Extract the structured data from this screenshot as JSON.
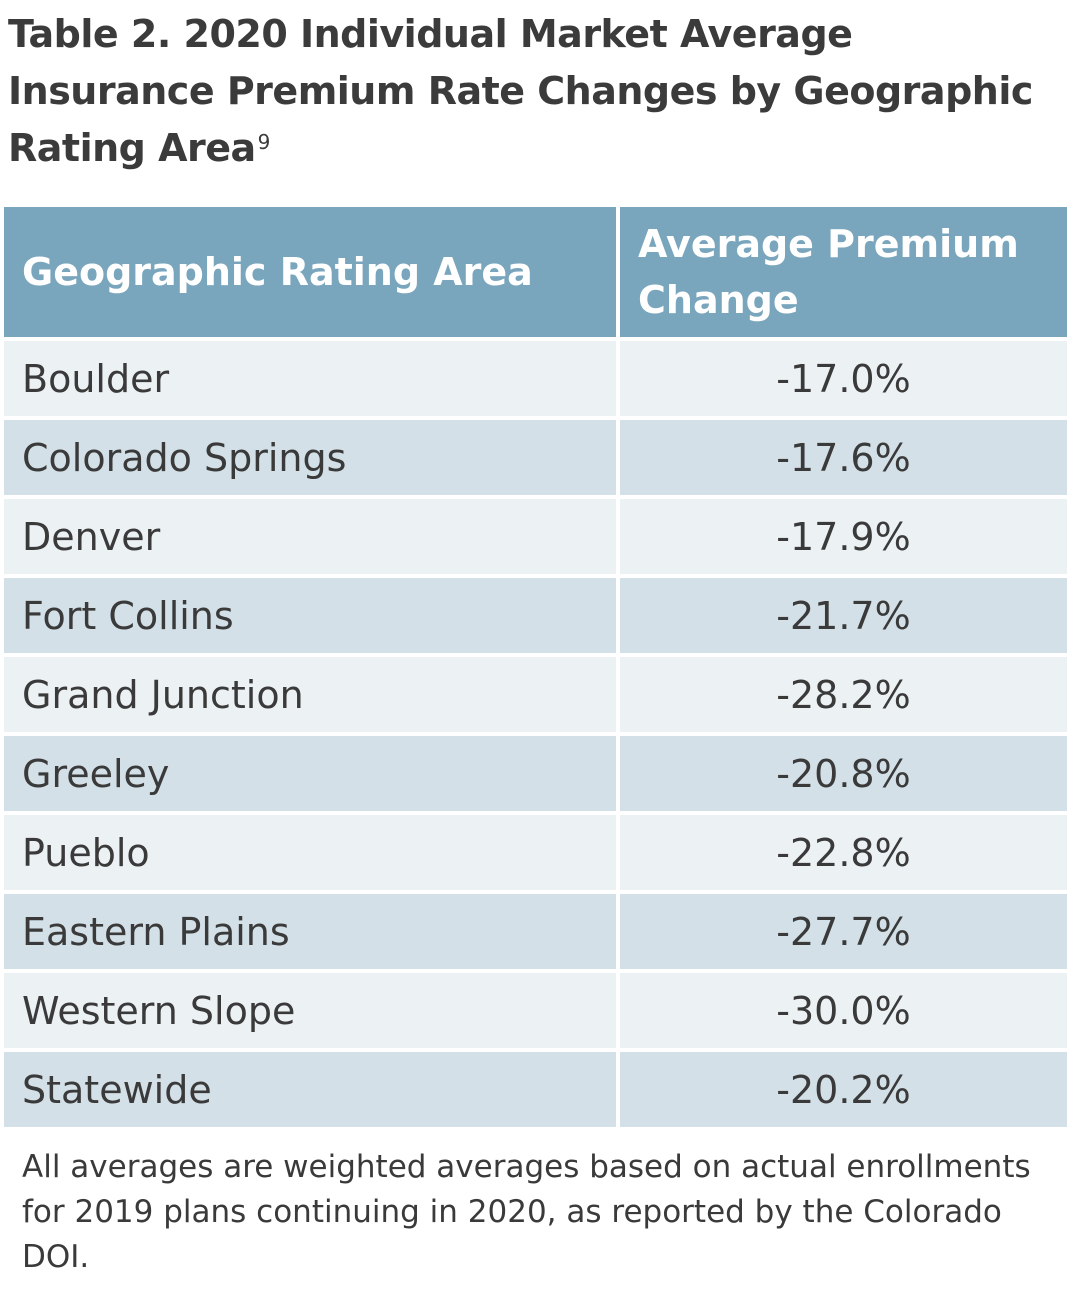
{
  "title": {
    "text": "Table 2. 2020 Individual Market Average Insurance Premium Rate Changes by Geographic Rating Area",
    "footnote_ref": "9"
  },
  "table": {
    "headers": [
      "Geographic Rating Area",
      "Average Premium Change"
    ],
    "rows": [
      {
        "area": "Boulder",
        "change": "-17.0%"
      },
      {
        "area": "Colorado Springs",
        "change": "-17.6%"
      },
      {
        "area": "Denver",
        "change": "-17.9%"
      },
      {
        "area": "Fort Collins",
        "change": "-21.7%"
      },
      {
        "area": "Grand Junction",
        "change": "-28.2%"
      },
      {
        "area": "Greeley",
        "change": "-20.8%"
      },
      {
        "area": "Pueblo",
        "change": "-22.8%"
      },
      {
        "area": "Eastern Plains",
        "change": "-27.7%"
      },
      {
        "area": "Western Slope",
        "change": "-30.0%"
      },
      {
        "area": "Statewide",
        "change": "-20.2%"
      }
    ]
  },
  "note": "All averages are weighted averages based on actual enrollments for 2019 plans continuing in 2020, as reported by the Colorado DOI.",
  "colors": {
    "header_bg": "#7aa6bd",
    "row_light": "#ecf1f4",
    "row_dark": "#d3e0e7",
    "text": "#3a3a3a"
  }
}
